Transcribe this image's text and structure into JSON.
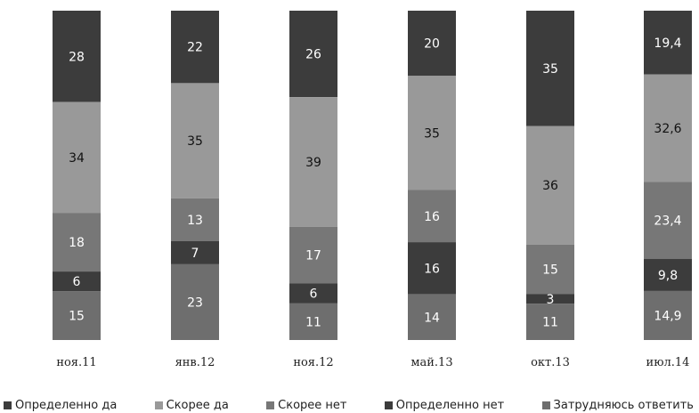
{
  "chart_data": {
    "type": "bar",
    "stacked": true,
    "normalized": true,
    "title": "",
    "xlabel": "",
    "ylabel": "",
    "categories": [
      "ноя.11",
      "янв.12",
      "ноя.12",
      "май.13",
      "окт.13",
      "июл.14"
    ],
    "series": [
      {
        "name": "Определенно да",
        "color": "#3c3c3c",
        "values": [
          28,
          22,
          26,
          20,
          35,
          19.4
        ]
      },
      {
        "name": "Скорее да",
        "color": "#999999",
        "values": [
          34,
          35,
          39,
          35,
          36,
          32.6
        ]
      },
      {
        "name": "Скорее нет",
        "color": "#777777",
        "values": [
          18,
          13,
          17,
          16,
          15,
          23.4
        ]
      },
      {
        "name": "Определенно нет",
        "color": "#3c3c3c",
        "values": [
          6,
          7,
          6,
          16,
          3,
          9.8
        ]
      },
      {
        "name": "Затрудняюсь ответить",
        "color": "#6e6e6e",
        "values": [
          15,
          23,
          11,
          14,
          11,
          14.9
        ]
      }
    ],
    "value_labels": [
      [
        "28",
        "22",
        "26",
        "20",
        "35",
        "19,4"
      ],
      [
        "34",
        "35",
        "39",
        "35",
        "36",
        "32,6"
      ],
      [
        "18",
        "13",
        "17",
        "16",
        "15",
        "23,4"
      ],
      [
        "6",
        "7",
        "6",
        "16",
        "3",
        "9,8"
      ],
      [
        "15",
        "23",
        "11",
        "14",
        "11",
        "14,9"
      ]
    ],
    "label_colors": [
      "#ffffff",
      "#111111",
      "#ffffff",
      "#ffffff",
      "#ffffff"
    ],
    "grid": false,
    "legend_position": "bottom"
  }
}
